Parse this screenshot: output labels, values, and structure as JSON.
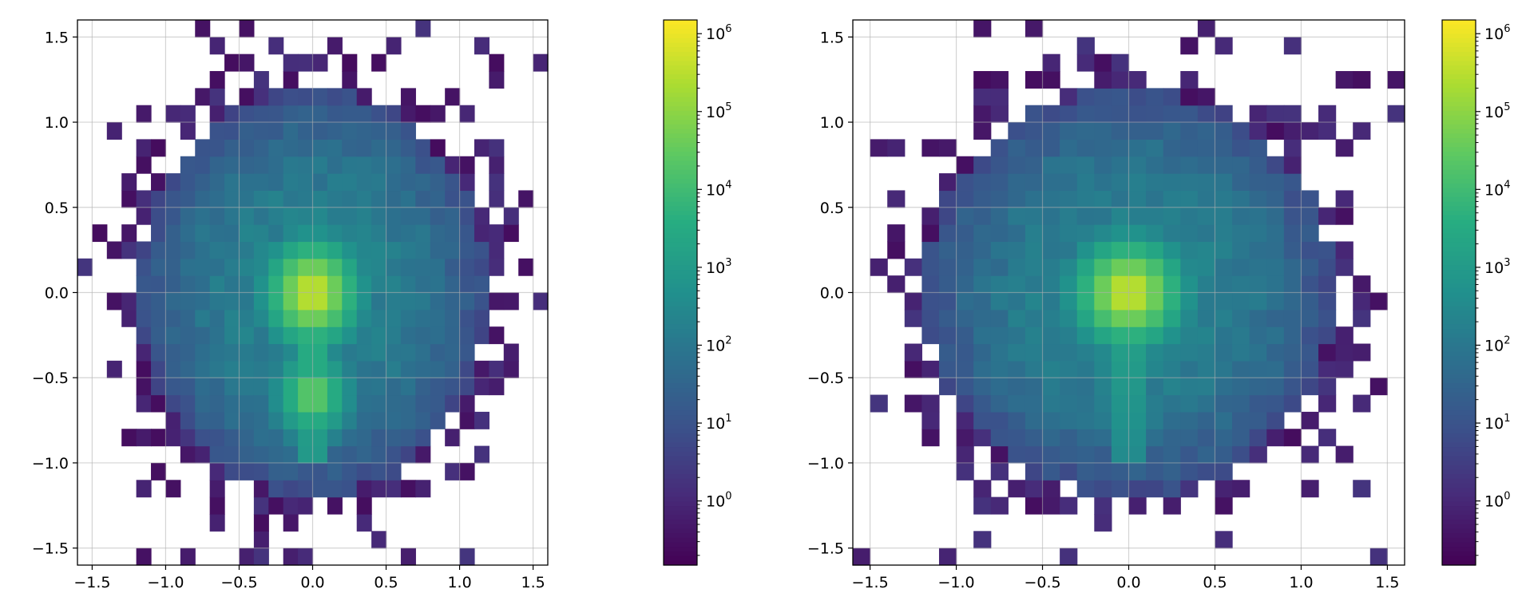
{
  "chart_data": [
    {
      "type": "heatmap",
      "title": "",
      "xlabel": "",
      "ylabel": "",
      "xlim": [
        -1.6,
        1.6
      ],
      "ylim": [
        -1.6,
        1.6
      ],
      "bins": 32,
      "xticks": [
        {
          "value": -1.5,
          "label": "−1.5"
        },
        {
          "value": -1.0,
          "label": "−1.0"
        },
        {
          "value": -0.5,
          "label": "−0.5"
        },
        {
          "value": 0.0,
          "label": "0.0"
        },
        {
          "value": 0.5,
          "label": "0.5"
        },
        {
          "value": 1.0,
          "label": "1.0"
        },
        {
          "value": 1.5,
          "label": "1.5"
        }
      ],
      "yticks": [
        {
          "value": 1.5,
          "label": "1.5"
        },
        {
          "value": 1.0,
          "label": "1.0"
        },
        {
          "value": 0.5,
          "label": "0.5"
        },
        {
          "value": 0.0,
          "label": "0.0"
        },
        {
          "value": -0.5,
          "label": "−0.5"
        },
        {
          "value": -1.0,
          "label": "−1.0"
        },
        {
          "value": -1.5,
          "label": "−1.5"
        }
      ],
      "grid": true,
      "colormap": "viridis",
      "colorbar": {
        "scale": "log",
        "range": [
          0.15,
          1500000
        ],
        "ticks": [
          {
            "value": 1,
            "base": "10",
            "exp": "0"
          },
          {
            "value": 10,
            "base": "10",
            "exp": "1"
          },
          {
            "value": 100,
            "base": "10",
            "exp": "2"
          },
          {
            "value": 1000,
            "base": "10",
            "exp": "3"
          },
          {
            "value": 10000,
            "base": "10",
            "exp": "4"
          },
          {
            "value": 100000,
            "base": "10",
            "exp": "5"
          },
          {
            "value": 1000000,
            "base": "10",
            "exp": "6"
          }
        ]
      },
      "distribution": {
        "core_peak_log10": 6.1,
        "core_center": [
          0.0,
          0.0
        ],
        "disk_radius": 1.2,
        "halo_log10": 2.3,
        "streak": {
          "x": 0.0,
          "y_from": 0.0,
          "y_to": -1.0,
          "peak_log10": 4.4
        },
        "secondary_peak": {
          "x": 0.0,
          "y": -0.6,
          "log10": 4.9
        }
      }
    },
    {
      "type": "heatmap",
      "title": "",
      "xlabel": "",
      "ylabel": "",
      "xlim": [
        -1.6,
        1.6
      ],
      "ylim": [
        -1.6,
        1.6
      ],
      "bins": 32,
      "xticks": [
        {
          "value": -1.5,
          "label": "−1.5"
        },
        {
          "value": -1.0,
          "label": "−1.0"
        },
        {
          "value": -0.5,
          "label": "−0.5"
        },
        {
          "value": 0.0,
          "label": "0.0"
        },
        {
          "value": 0.5,
          "label": "0.5"
        },
        {
          "value": 1.0,
          "label": "1.0"
        },
        {
          "value": 1.5,
          "label": "1.5"
        }
      ],
      "yticks": [
        {
          "value": 1.5,
          "label": "1.5"
        },
        {
          "value": 1.0,
          "label": "1.0"
        },
        {
          "value": 0.5,
          "label": "0.5"
        },
        {
          "value": 0.0,
          "label": "0.0"
        },
        {
          "value": -0.5,
          "label": "−0.5"
        },
        {
          "value": -1.0,
          "label": "−1.0"
        },
        {
          "value": -1.5,
          "label": "−1.5"
        }
      ],
      "grid": true,
      "colormap": "viridis",
      "colorbar": {
        "scale": "log",
        "range": [
          0.15,
          1500000
        ],
        "ticks": [
          {
            "value": 1,
            "base": "10",
            "exp": "0"
          },
          {
            "value": 10,
            "base": "10",
            "exp": "1"
          },
          {
            "value": 100,
            "base": "10",
            "exp": "2"
          },
          {
            "value": 1000,
            "base": "10",
            "exp": "3"
          },
          {
            "value": 10000,
            "base": "10",
            "exp": "4"
          },
          {
            "value": 100000,
            "base": "10",
            "exp": "5"
          },
          {
            "value": 1000000,
            "base": "10",
            "exp": "6"
          }
        ]
      },
      "distribution": {
        "core_peak_log10": 6.1,
        "core_center": [
          0.0,
          0.0
        ],
        "disk_radius": 1.2,
        "halo_log10": 2.3,
        "streak": {
          "x": 0.0,
          "y_from": 0.0,
          "y_to": -1.0,
          "peak_log10": 4.0
        },
        "secondary_peak": null
      }
    }
  ]
}
